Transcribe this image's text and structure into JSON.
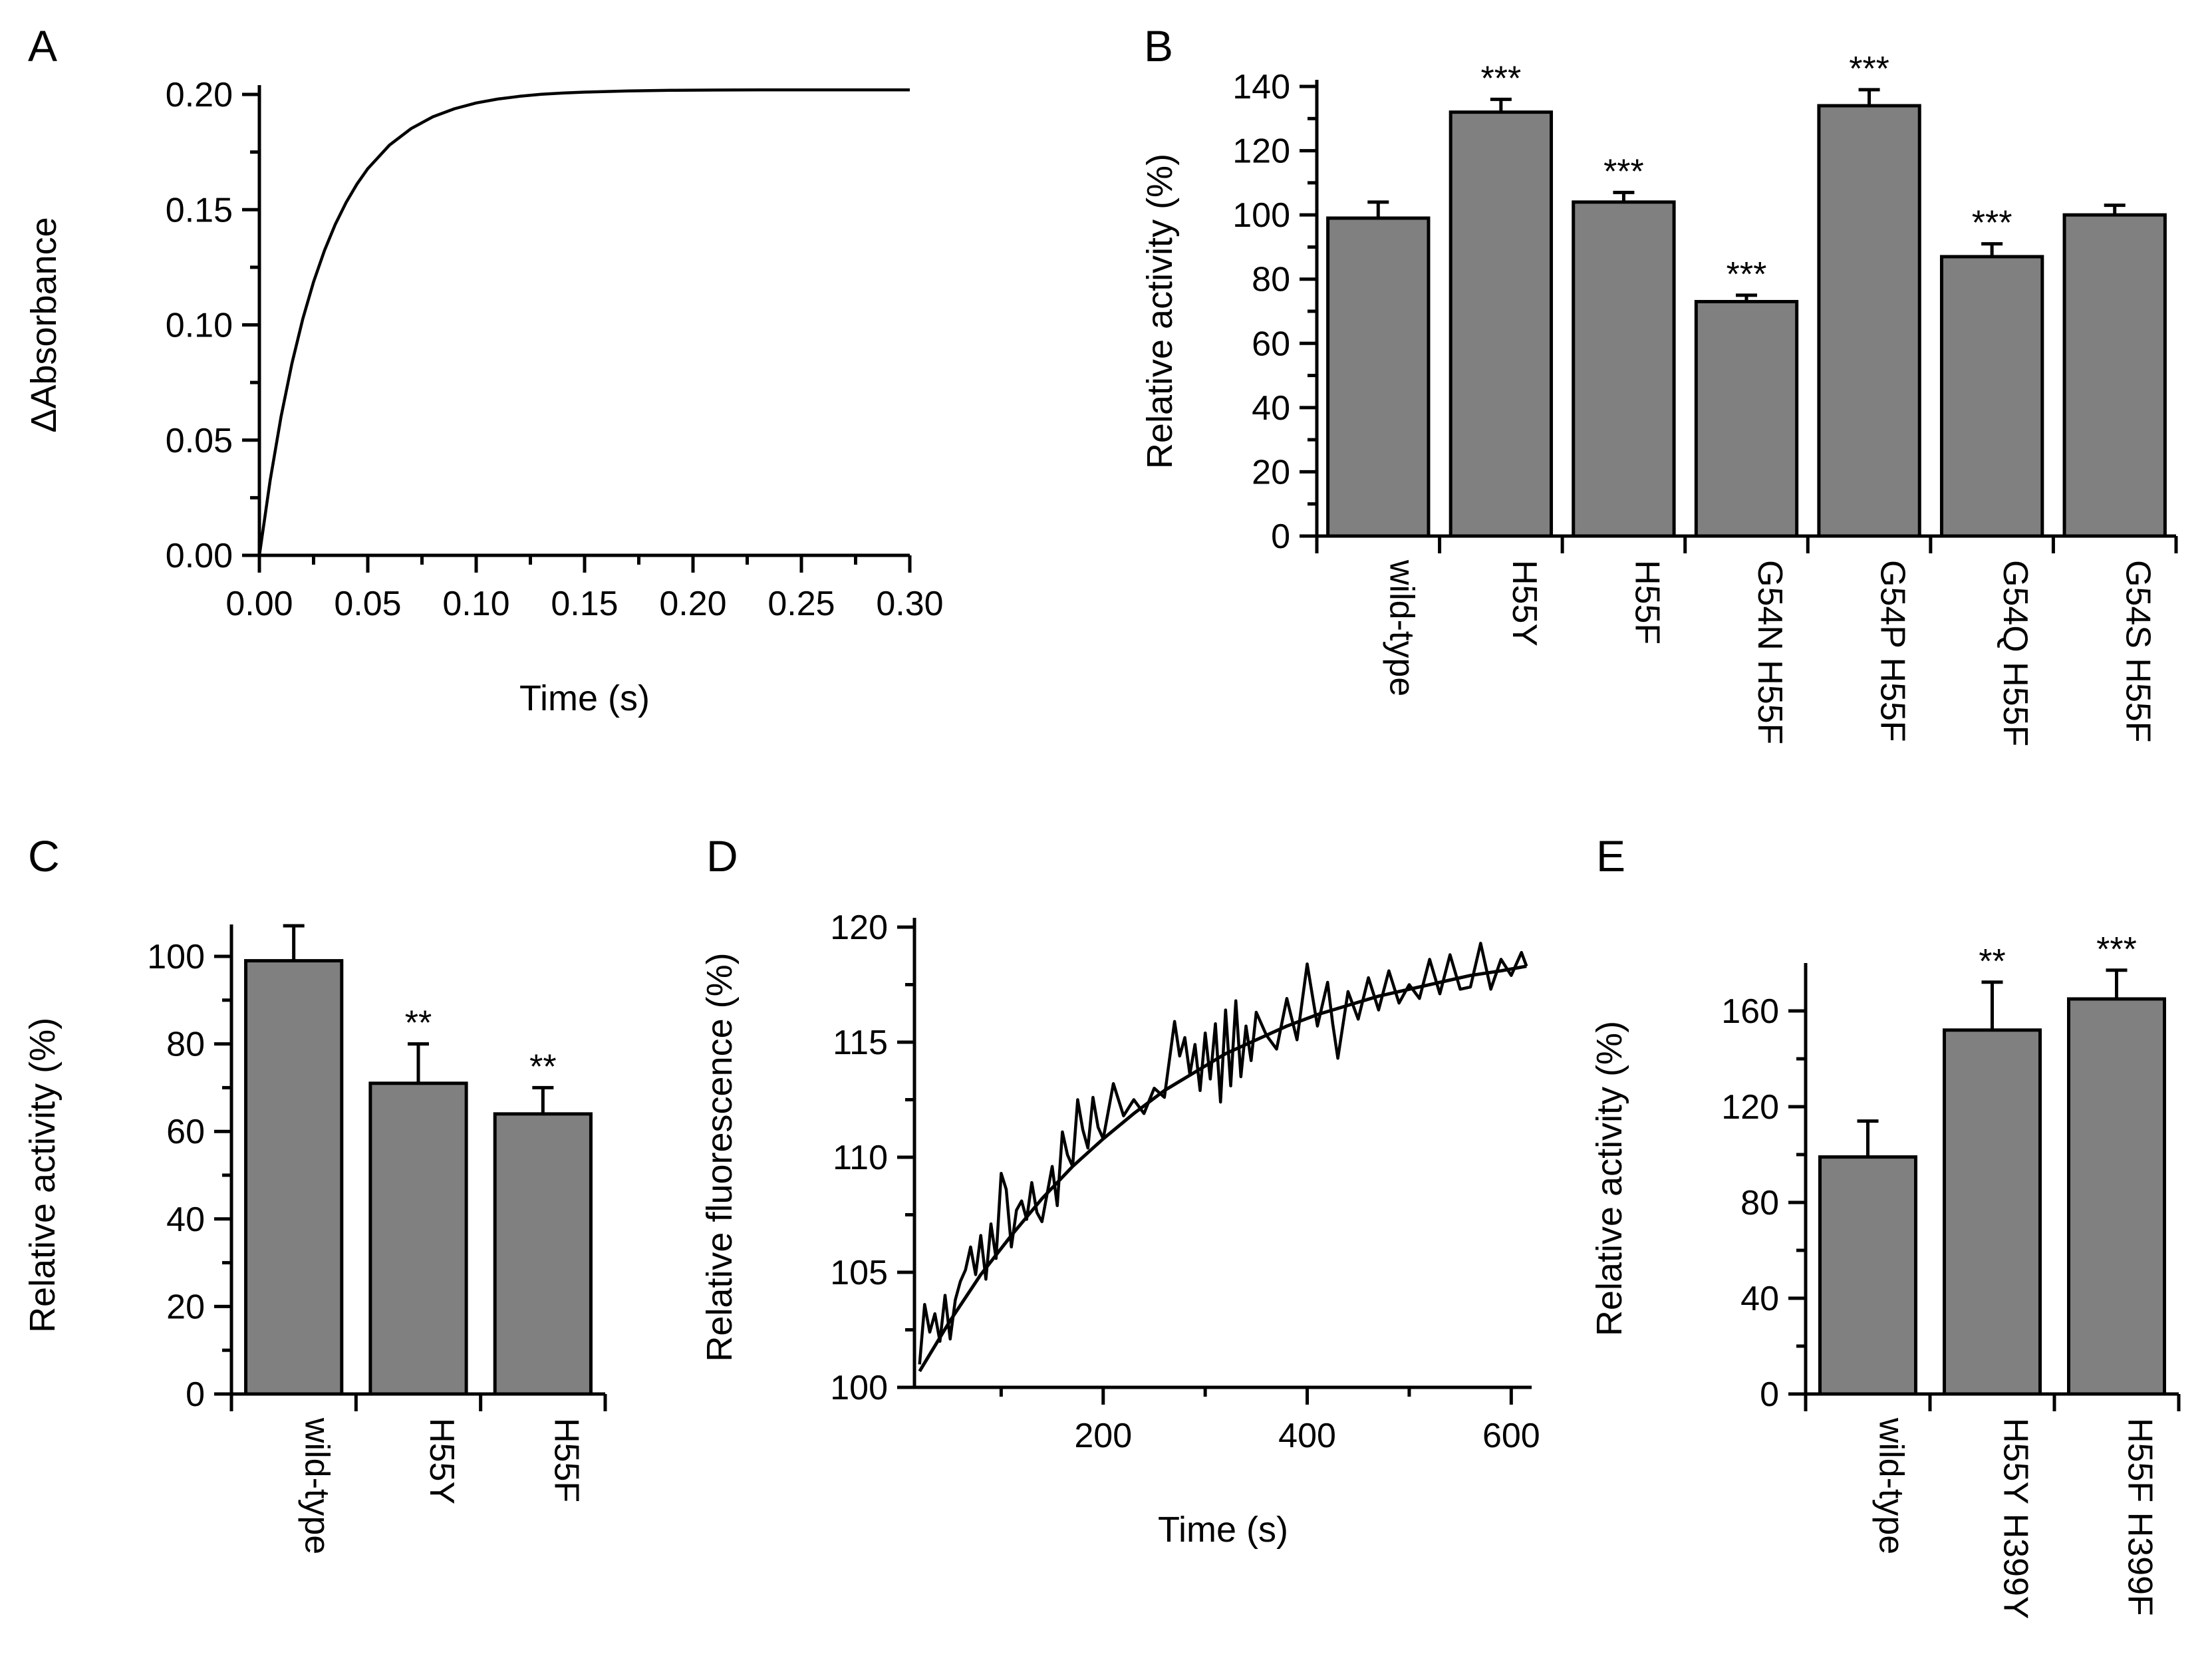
{
  "chart_data": [
    {
      "panel": "A",
      "type": "line",
      "xlabel": "Time (s)",
      "ylabel": "ΔAbsorbance",
      "xlim": [
        0,
        0.3
      ],
      "ylim": [
        0,
        0.2
      ],
      "xticks": [
        "0.00",
        "0.05",
        "0.10",
        "0.15",
        "0.20",
        "0.25",
        "0.30"
      ],
      "yticks": [
        "0.00",
        "0.05",
        "0.10",
        "0.15",
        "0.20"
      ],
      "series": [
        {
          "x": [
            0,
            0.005,
            0.01,
            0.015,
            0.02,
            0.025,
            0.03,
            0.035,
            0.04,
            0.045,
            0.05,
            0.06,
            0.07,
            0.08,
            0.09,
            0.1,
            0.11,
            0.12,
            0.13,
            0.14,
            0.15,
            0.17,
            0.19,
            0.21,
            0.23,
            0.25,
            0.27,
            0.3
          ],
          "y": [
            0,
            0.0327,
            0.0602,
            0.0832,
            0.1025,
            0.1187,
            0.1322,
            0.1436,
            0.1531,
            0.1611,
            0.1678,
            0.178,
            0.1852,
            0.1903,
            0.1938,
            0.1963,
            0.198,
            0.1992,
            0.2001,
            0.2006,
            0.201,
            0.2015,
            0.2018,
            0.2019,
            0.202,
            0.202,
            0.202,
            0.202
          ]
        }
      ]
    },
    {
      "panel": "B",
      "type": "bar",
      "ylabel": "Relative activity (%)",
      "ylim": [
        0,
        140
      ],
      "yticks": [
        "0",
        "20",
        "40",
        "60",
        "80",
        "100",
        "120",
        "140"
      ],
      "categories": [
        "wild-type",
        "H55Y",
        "H55F",
        "G54N H55F",
        "G54P H55F",
        "G54Q H55F",
        "G54S H55F"
      ],
      "values": [
        99,
        132,
        104,
        73,
        134,
        87,
        100
      ],
      "errors": [
        5,
        4,
        3,
        2,
        5,
        4,
        3
      ],
      "significance": [
        "",
        "***",
        "***",
        "***",
        "***",
        "***",
        ""
      ]
    },
    {
      "panel": "C",
      "type": "bar",
      "ylabel": "Relative activity (%)",
      "ylim": [
        0,
        100
      ],
      "yticks": [
        "0",
        "20",
        "40",
        "60",
        "80",
        "100"
      ],
      "categories": [
        "wild-type",
        "H55Y",
        "H55F"
      ],
      "values": [
        99,
        71,
        64
      ],
      "errors": [
        8,
        9,
        6
      ],
      "significance": [
        "",
        "**",
        "**"
      ]
    },
    {
      "panel": "D",
      "type": "line",
      "xlabel": "Time (s)",
      "ylabel": "Relative fluorescence (%)",
      "xlim": [
        15,
        620
      ],
      "ylim": [
        100,
        120
      ],
      "xticks": [
        "200",
        "400",
        "600"
      ],
      "yticks": [
        "100",
        "105",
        "110",
        "115",
        "120"
      ],
      "series": [
        {
          "name": "",
          "x": [
            20,
            25,
            30,
            35,
            40,
            45,
            50,
            55,
            60,
            65,
            70,
            75,
            80,
            85,
            90,
            95,
            100,
            105,
            110,
            115,
            120,
            125,
            130,
            135,
            140,
            145,
            150,
            155,
            160,
            165,
            170,
            175,
            180,
            185,
            190,
            195,
            200,
            210,
            220,
            230,
            240,
            250,
            260,
            270,
            275,
            280,
            285,
            290,
            295,
            300,
            305,
            310,
            315,
            320,
            325,
            330,
            335,
            340,
            345,
            350,
            360,
            370,
            380,
            390,
            400,
            410,
            420,
            425,
            430,
            440,
            450,
            460,
            470,
            480,
            490,
            500,
            510,
            520,
            530,
            540,
            550,
            560,
            570,
            580,
            590,
            600,
            610,
            615
          ],
          "y": [
            101.0,
            103.6,
            102.4,
            103.2,
            102.0,
            104.0,
            102.1,
            103.8,
            104.6,
            105.1,
            106.1,
            104.9,
            106.6,
            104.7,
            107.1,
            105.6,
            109.3,
            108.6,
            106.1,
            107.7,
            108.1,
            107.3,
            108.9,
            107.6,
            107.2,
            108.4,
            109.6,
            107.9,
            111.1,
            110.1,
            109.6,
            112.5,
            111.2,
            110.4,
            112.6,
            111.3,
            110.8,
            113.2,
            111.8,
            112.5,
            111.9,
            113.0,
            112.6,
            115.9,
            114.4,
            115.2,
            113.6,
            114.9,
            112.9,
            115.4,
            113.4,
            115.8,
            112.4,
            116.4,
            113.1,
            116.8,
            113.5,
            115.7,
            114.2,
            116.3,
            115.3,
            114.7,
            116.9,
            115.1,
            118.4,
            115.7,
            117.6,
            115.8,
            114.3,
            117.2,
            116.0,
            117.8,
            116.4,
            118.1,
            116.7,
            117.5,
            116.9,
            118.6,
            117.1,
            118.8,
            117.3,
            117.4,
            119.3,
            117.3,
            118.6,
            117.9,
            118.9,
            118.3
          ]
        },
        {
          "name": "",
          "x": [
            20,
            50,
            80,
            110,
            140,
            170,
            200,
            230,
            260,
            290,
            320,
            350,
            380,
            410,
            440,
            470,
            500,
            530,
            560,
            590,
            615
          ],
          "y": [
            100.7,
            102.9,
            104.9,
            106.6,
            108.2,
            109.6,
            110.8,
            111.9,
            112.9,
            113.7,
            114.5,
            115.1,
            115.7,
            116.2,
            116.6,
            117.0,
            117.3,
            117.6,
            117.9,
            118.1,
            118.3
          ]
        }
      ]
    },
    {
      "panel": "E",
      "type": "bar",
      "ylabel": "Relative activity (%)",
      "ylim": [
        0,
        180
      ],
      "yticks": [
        "0",
        "40",
        "80",
        "120",
        "160"
      ],
      "categories": [
        "wild-type",
        "H55Y H399Y",
        "H55F H399F"
      ],
      "values": [
        99,
        152,
        165
      ],
      "errors": [
        15,
        20,
        12
      ],
      "significance": [
        "",
        "**",
        "***"
      ]
    }
  ],
  "panels": {
    "labels": [
      "A",
      "B",
      "C",
      "D",
      "E"
    ]
  },
  "colors": {
    "bar_fill": "#808080",
    "stroke": "#000000"
  }
}
